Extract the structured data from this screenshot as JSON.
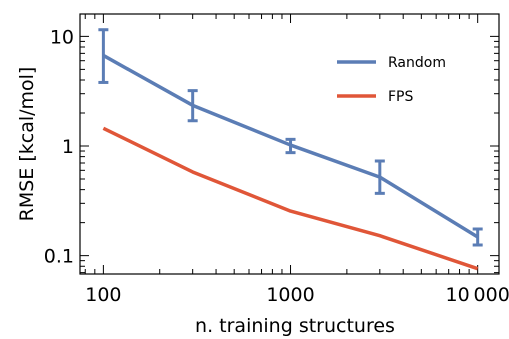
{
  "chart_data": {
    "type": "line",
    "xlabel": "n. training structures",
    "ylabel": "RMSE [kcal/mol]",
    "xscale": "log",
    "yscale": "log",
    "xlim": [
      75,
      13000
    ],
    "ylim": [
      0.068,
      16
    ],
    "xticks": [
      {
        "value": 100,
        "label": "100"
      },
      {
        "value": 1000,
        "label": "1000"
      },
      {
        "value": 10000,
        "label": "10 000"
      }
    ],
    "yticks": [
      {
        "value": 0.1,
        "label": "0.1"
      },
      {
        "value": 1,
        "label": "1"
      },
      {
        "value": 10,
        "label": "10"
      }
    ],
    "x": [
      100,
      300,
      1000,
      3000,
      10000
    ],
    "series": [
      {
        "name": "Random",
        "color": "#5b7db5",
        "values": [
          6.7,
          2.35,
          1.02,
          0.52,
          0.148
        ],
        "error_low": [
          3.8,
          1.7,
          0.87,
          0.37,
          0.125
        ],
        "error_high": [
          11.5,
          3.2,
          1.15,
          0.73,
          0.175
        ]
      },
      {
        "name": "FPS",
        "color": "#e05638",
        "values": [
          1.45,
          0.58,
          0.255,
          0.152,
          0.076
        ]
      }
    ],
    "legend_position": "top-right",
    "grid": false
  }
}
